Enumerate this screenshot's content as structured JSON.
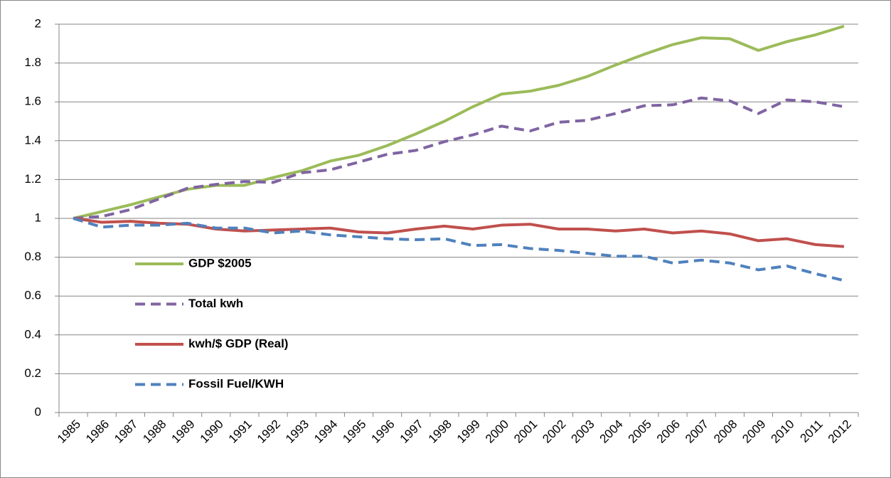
{
  "chart_data": {
    "type": "line",
    "categories": [
      "1985",
      "1986",
      "1987",
      "1988",
      "1989",
      "1990",
      "1991",
      "1992",
      "1993",
      "1994",
      "1995",
      "1996",
      "1997",
      "1998",
      "1999",
      "2000",
      "2001",
      "2002",
      "2003",
      "2004",
      "2005",
      "2006",
      "2007",
      "2008",
      "2009",
      "2010",
      "2011",
      "2012"
    ],
    "series": [
      {
        "name": "GDP $2005",
        "color": "#9bbb59",
        "style": "solid",
        "values": [
          1.0,
          1.035,
          1.07,
          1.11,
          1.15,
          1.17,
          1.17,
          1.21,
          1.245,
          1.295,
          1.325,
          1.375,
          1.435,
          1.5,
          1.575,
          1.64,
          1.655,
          1.685,
          1.73,
          1.79,
          1.845,
          1.895,
          1.93,
          1.925,
          1.865,
          1.91,
          1.945,
          1.99
        ]
      },
      {
        "name": "Total kwh",
        "color": "#8064a2",
        "style": "dashed",
        "values": [
          1.0,
          1.01,
          1.045,
          1.1,
          1.155,
          1.175,
          1.19,
          1.185,
          1.235,
          1.25,
          1.29,
          1.33,
          1.35,
          1.395,
          1.43,
          1.475,
          1.45,
          1.495,
          1.505,
          1.54,
          1.58,
          1.585,
          1.62,
          1.605,
          1.54,
          1.61,
          1.6,
          1.575
        ]
      },
      {
        "name": "kwh/$ GDP (Real)",
        "color": "#c0504d",
        "style": "solid",
        "values": [
          1.0,
          0.98,
          0.985,
          0.975,
          0.97,
          0.945,
          0.935,
          0.94,
          0.945,
          0.95,
          0.93,
          0.925,
          0.945,
          0.96,
          0.945,
          0.965,
          0.97,
          0.945,
          0.945,
          0.935,
          0.945,
          0.925,
          0.935,
          0.92,
          0.885,
          0.895,
          0.865,
          0.855
        ]
      },
      {
        "name": "Fossil Fuel/KWH",
        "color": "#4f81bd",
        "style": "dashed",
        "values": [
          1.0,
          0.955,
          0.965,
          0.965,
          0.975,
          0.95,
          0.95,
          0.925,
          0.935,
          0.915,
          0.905,
          0.895,
          0.89,
          0.895,
          0.86,
          0.865,
          0.845,
          0.835,
          0.82,
          0.805,
          0.805,
          0.77,
          0.785,
          0.77,
          0.735,
          0.755,
          0.715,
          0.68
        ]
      }
    ],
    "ylim": [
      0,
      2
    ],
    "yticks": [
      0,
      0.2,
      0.4,
      0.6,
      0.8,
      1,
      1.2,
      1.4,
      1.6,
      1.8,
      2
    ],
    "grid": true,
    "legend": "left"
  }
}
